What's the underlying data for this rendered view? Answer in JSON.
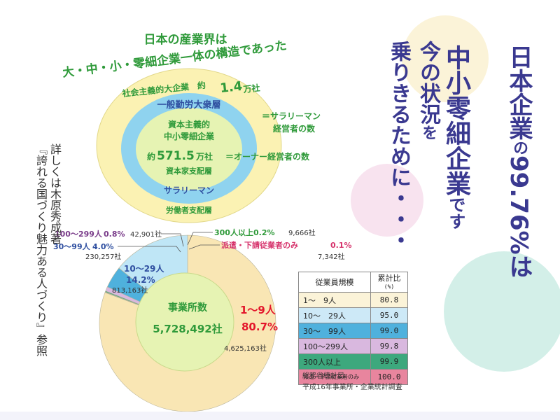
{
  "headline": {
    "main_a": "日本企業",
    "main_b": "の",
    "main_c": "99.76",
    "main_d": "%は",
    "mid_a": "中小零細企業",
    "mid_b": "です",
    "left_a": "今の状況",
    "left_b": "を",
    "left_c": "乗りきるために・・・"
  },
  "note_text": {
    "line1": "詳しくは木原秀成著",
    "line2": "『誇れる国づくり魅力ある人づくり』参照"
  },
  "structure": {
    "title1": "日本の産業界は",
    "title2": "大・中・小・零細企業一体の構造であった",
    "big_label": "社会主義的大企業　約",
    "big_value": "1.4",
    "big_unit": "万社",
    "big_note1": "＝サラリーマン",
    "big_note2": "経営者の数",
    "middle_top": "一般勤労大衆層",
    "inner_1": "資本主義的",
    "inner_2": "中小零細企業",
    "inner_3a": "約",
    "inner_3b": "571.5",
    "inner_3c": "万社",
    "inner_note": "＝オーナー経営者の数",
    "inner_4": "資本家支配層",
    "middle_bottom": "サラリーマン",
    "outer_bottom": "労働者支配層"
  },
  "chart_data": {
    "type": "pie",
    "title": "事業所数",
    "total": "5,728,492社",
    "slices": [
      {
        "label": "1〜9人",
        "percent": 80.7,
        "count": "4,625,163社",
        "color": "#f9e6b4"
      },
      {
        "label": "10〜29人",
        "percent": 14.2,
        "count": "813,163社",
        "color": "#bfe6f6"
      },
      {
        "label": "30〜99人",
        "percent": 4.0,
        "count": "230,257社",
        "color": "#4fb1dd"
      },
      {
        "label": "100〜299人",
        "percent": 0.8,
        "count": "42,901社",
        "color": "#d9b8df"
      },
      {
        "label": "300人以上",
        "percent": 0.2,
        "count": "9,666社",
        "color": "#3da87d"
      },
      {
        "label": "派遣・下請従業者のみ",
        "percent": 0.1,
        "count": "7,342社",
        "color": "#e8859e"
      }
    ],
    "labels": {
      "s1_pct": "80.7%",
      "s2_pct": "14.2%",
      "s3_pct": "4.0%",
      "s4_pct": "0.8%",
      "s5_pct": "0.2%",
      "s6_pct": "0.1%"
    }
  },
  "table": {
    "header_size": "従業員規模",
    "header_ratio": "累計比",
    "header_unit": "(%)",
    "rows": [
      {
        "label": "1〜　9人",
        "value": "80.8",
        "color": "#fbf3d8"
      },
      {
        "label": "10〜　29人",
        "value": "95.0",
        "color": "#cde9f7"
      },
      {
        "label": "30〜　99人",
        "value": "99.0",
        "color": "#4fb1dd"
      },
      {
        "label": "100〜299人",
        "value": "99.8",
        "color": "#d9b8df"
      },
      {
        "label": "300人以上",
        "value": "99.9",
        "color": "#3da87d"
      },
      {
        "label": "派遣・下請従業者のみ",
        "value": "100.0",
        "color": "#e8859e"
      }
    ]
  },
  "source": {
    "line1": "総務省統計局",
    "line2": "平成16年事業所・企業統計調査"
  },
  "colors": {
    "navy": "#3a3990",
    "green": "#2f9a3a",
    "red": "#e3162b",
    "circle_outer": "#fbf2b3",
    "circle_mid": "#8fd3ef",
    "circle_inner": "#e6f3b3"
  }
}
